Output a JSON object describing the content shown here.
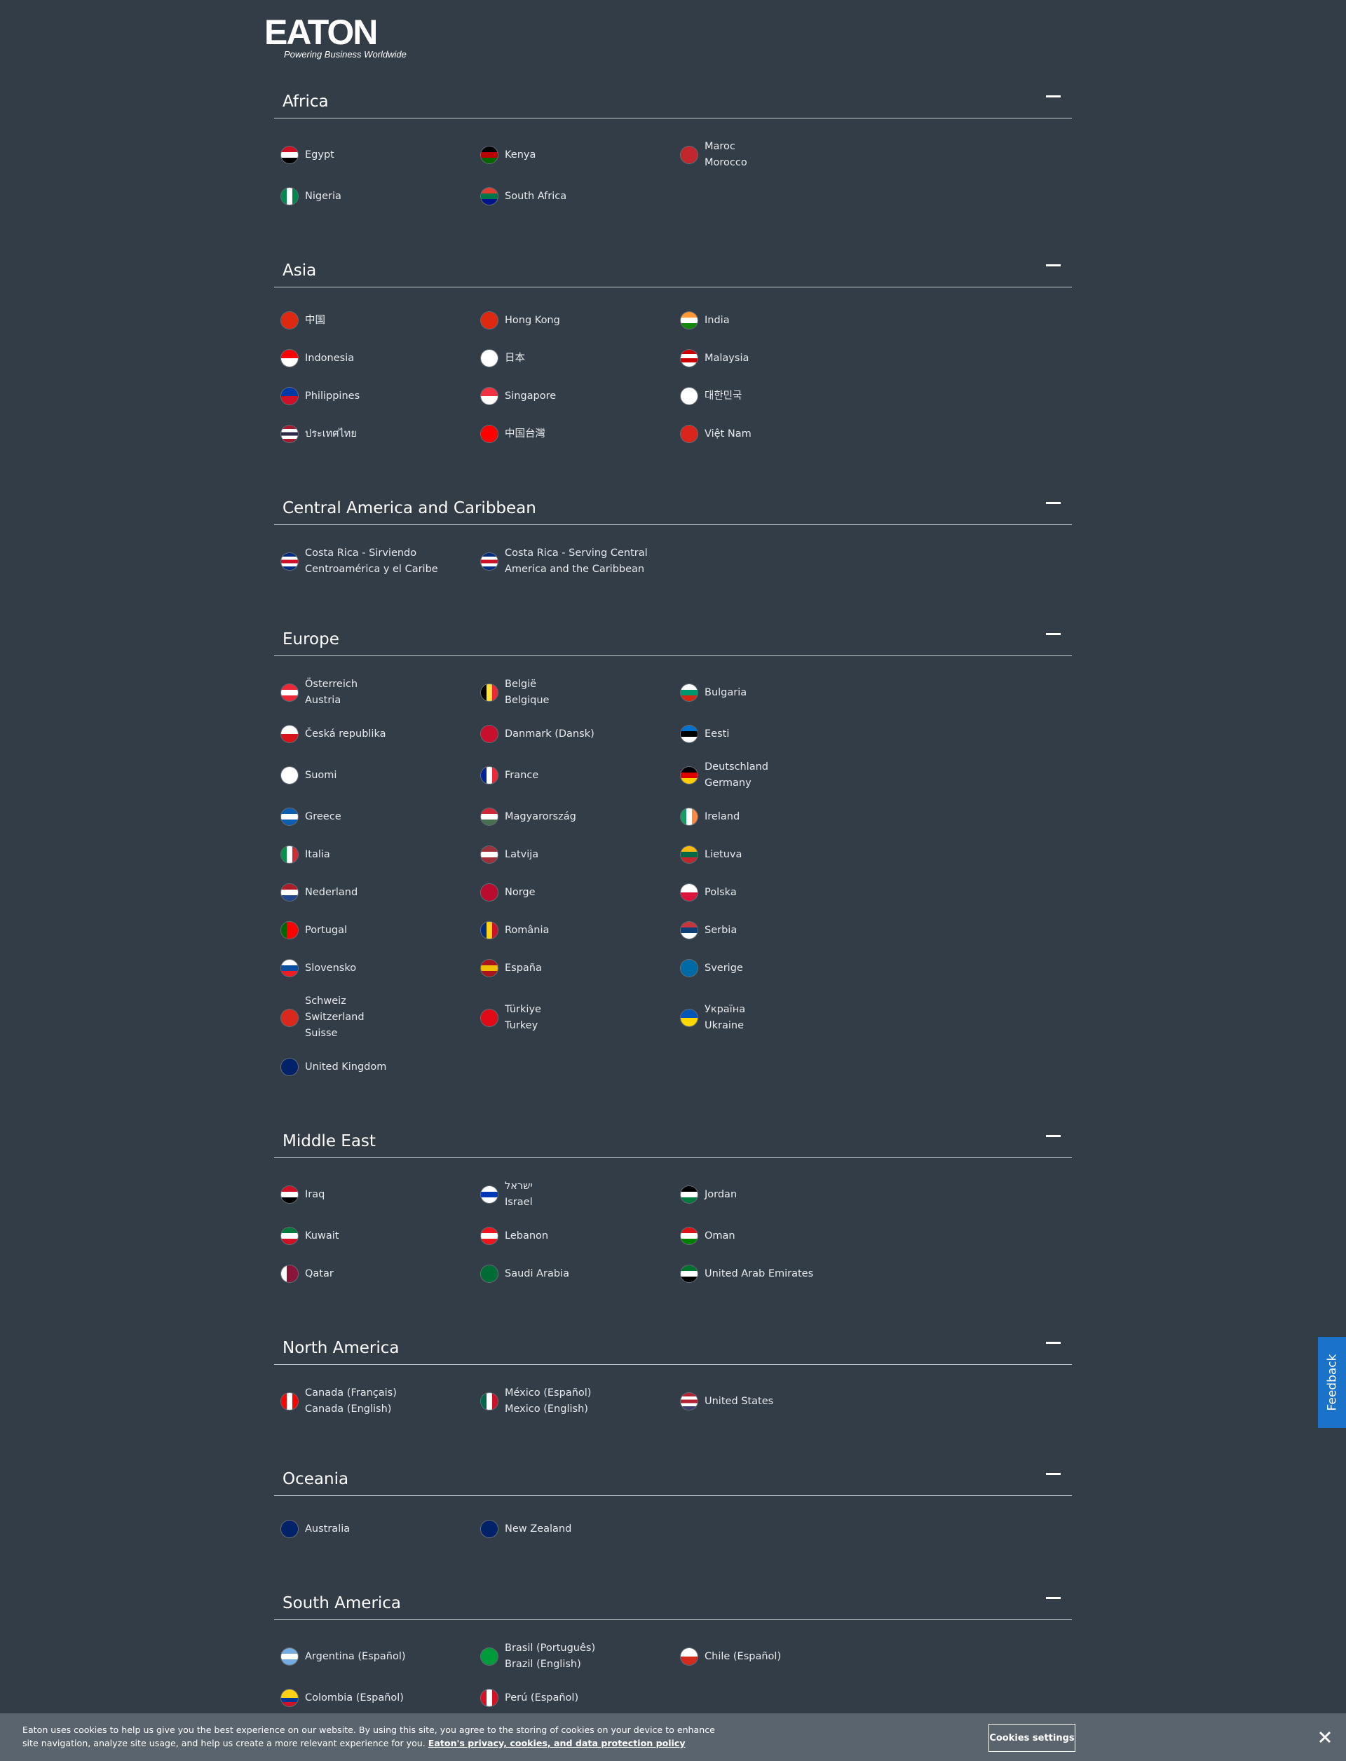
{
  "header": {
    "logo": "EATON",
    "tagline": "Powering Business Worldwide"
  },
  "sections": [
    {
      "title": "Africa",
      "countries": [
        [
          "Egypt"
        ],
        [
          "Kenya"
        ],
        [
          "Maroc",
          "Morocco"
        ],
        [
          "Nigeria"
        ],
        [
          "South Africa"
        ]
      ]
    },
    {
      "title": "Asia",
      "countries": [
        [
          "中国"
        ],
        [
          "Hong Kong"
        ],
        [
          "India"
        ],
        [
          "Indonesia"
        ],
        [
          "日本"
        ],
        [
          "Malaysia"
        ],
        [
          "Philippines"
        ],
        [
          "Singapore"
        ],
        [
          "대한민국"
        ],
        [
          "ประเทศไทย"
        ],
        [
          "中国台灣"
        ],
        [
          "Việt Nam"
        ]
      ]
    },
    {
      "title": "Central America and Caribbean",
      "countries": [
        [
          "Costa Rica - Sirviendo Centroamérica y el Caribe"
        ],
        [
          "Costa Rica - Serving Central America and the Caribbean"
        ]
      ]
    },
    {
      "title": "Europe",
      "countries": [
        [
          "Österreich",
          "Austria"
        ],
        [
          "België",
          "Belgique"
        ],
        [
          "Bulgaria"
        ],
        [
          "Česká republika"
        ],
        [
          "Danmark (Dansk)"
        ],
        [
          "Eesti"
        ],
        [
          "Suomi"
        ],
        [
          "France"
        ],
        [
          "Deutschland",
          "Germany"
        ],
        [
          "Greece"
        ],
        [
          "Magyarország"
        ],
        [
          "Ireland"
        ],
        [
          "Italia"
        ],
        [
          "Latvija"
        ],
        [
          "Lietuva"
        ],
        [
          "Nederland"
        ],
        [
          "Norge"
        ],
        [
          "Polska"
        ],
        [
          "Portugal"
        ],
        [
          "România"
        ],
        [
          "Serbia"
        ],
        [
          "Slovensko"
        ],
        [
          "España"
        ],
        [
          "Sverige"
        ],
        [
          "Schweiz",
          "Switzerland",
          "Suisse"
        ],
        [
          "Türkiye",
          "Turkey"
        ],
        [
          "Україна",
          "Ukraine"
        ],
        [
          "United Kingdom"
        ]
      ]
    },
    {
      "title": "Middle East",
      "countries": [
        [
          "Iraq"
        ],
        [
          "ישראל",
          "Israel"
        ],
        [
          "Jordan"
        ],
        [
          "Kuwait"
        ],
        [
          "Lebanon"
        ],
        [
          "Oman"
        ],
        [
          "Qatar"
        ],
        [
          "Saudi Arabia"
        ],
        [
          "United Arab Emirates"
        ]
      ]
    },
    {
      "title": "North America",
      "countries": [
        [
          "Canada (Français)",
          "Canada (English)"
        ],
        [
          "México (Español)",
          "Mexico (English)"
        ],
        [
          "United States"
        ]
      ]
    },
    {
      "title": "Oceania",
      "countries": [
        [
          "Australia"
        ],
        [
          "New Zealand"
        ]
      ]
    },
    {
      "title": "South America",
      "countries": [
        [
          "Argentina (Español)"
        ],
        [
          "Brasil (Português)",
          "Brazil (English)"
        ],
        [
          "Chile (Español)"
        ],
        [
          "Colombia (Español)"
        ],
        [
          "Perú (Español)"
        ]
      ]
    }
  ],
  "cookie_banner": {
    "text": "Eaton uses cookies to help us give you the best experience on our website. By using this site, you agree to the storing of cookies on your device to enhance site navigation, analyze site usage, and help us create a more relevant experience for you.",
    "link": "Eaton's privacy, cookies, and data protection policy",
    "button": "Cookies settings"
  },
  "feedback": "Feedback"
}
